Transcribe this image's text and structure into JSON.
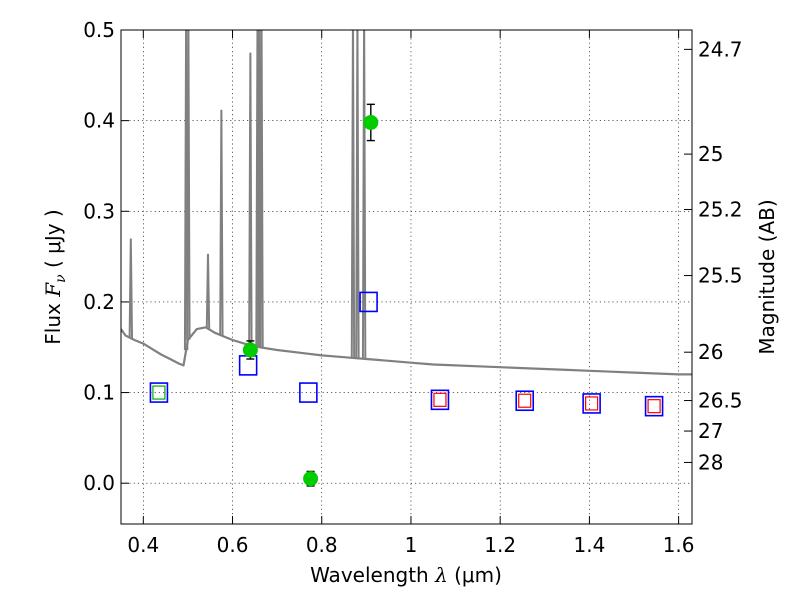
{
  "chart_data": {
    "type": "scatter",
    "title": "",
    "xlabel": {
      "prefix": "Wavelength  ",
      "symbol": "λ",
      "unit": " (μm)"
    },
    "ylabel": {
      "prefix": "Flux  ",
      "symbol": "F",
      "subscript": "ν",
      "unit": "  ( μJy )"
    },
    "y2label": "Magnitude (AB)",
    "xlim": [
      0.35,
      1.63
    ],
    "ylim": [
      -0.045,
      0.5
    ],
    "grid": true,
    "legend": "none",
    "x_ticks": [
      {
        "value": 0.4,
        "label": "0.4"
      },
      {
        "value": 0.6,
        "label": "0.6"
      },
      {
        "value": 0.8,
        "label": "0.8"
      },
      {
        "value": 1.0,
        "label": "1"
      },
      {
        "value": 1.2,
        "label": "1.2"
      },
      {
        "value": 1.4,
        "label": "1.4"
      },
      {
        "value": 1.6,
        "label": "1.6"
      }
    ],
    "y_ticks": [
      {
        "value": 0.0,
        "label": "0.0"
      },
      {
        "value": 0.1,
        "label": "0.1"
      },
      {
        "value": 0.2,
        "label": "0.2"
      },
      {
        "value": 0.3,
        "label": "0.3"
      },
      {
        "value": 0.4,
        "label": "0.4"
      },
      {
        "value": 0.5,
        "label": "0.5"
      }
    ],
    "y2_ticks": [
      {
        "value": 24.7,
        "label": "24.7"
      },
      {
        "value": 25,
        "label": "25"
      },
      {
        "value": 25.2,
        "label": "25.2"
      },
      {
        "value": 25.5,
        "label": "25.5"
      },
      {
        "value": 26,
        "label": "26"
      },
      {
        "value": 26.5,
        "label": "26.5"
      },
      {
        "value": 27,
        "label": "27"
      },
      {
        "value": 28,
        "label": "28"
      }
    ],
    "series": [
      {
        "kind": "line",
        "color": "#808080",
        "continuum": [
          [
            0.35,
            0.17
          ],
          [
            0.36,
            0.163
          ],
          [
            0.38,
            0.158
          ],
          [
            0.4,
            0.154
          ],
          [
            0.42,
            0.148
          ],
          [
            0.44,
            0.142
          ],
          [
            0.46,
            0.137
          ],
          [
            0.48,
            0.132
          ],
          [
            0.49,
            0.13
          ],
          [
            0.5,
            0.158
          ],
          [
            0.52,
            0.17
          ],
          [
            0.54,
            0.172
          ],
          [
            0.56,
            0.166
          ],
          [
            0.58,
            0.162
          ],
          [
            0.6,
            0.158
          ],
          [
            0.62,
            0.155
          ],
          [
            0.64,
            0.152
          ],
          [
            0.66,
            0.15
          ],
          [
            0.7,
            0.147
          ],
          [
            0.75,
            0.144
          ],
          [
            0.8,
            0.141
          ],
          [
            0.85,
            0.139
          ],
          [
            0.9,
            0.137
          ],
          [
            0.95,
            0.135
          ],
          [
            1.0,
            0.133
          ],
          [
            1.05,
            0.131
          ],
          [
            1.1,
            0.13
          ],
          [
            1.15,
            0.129
          ],
          [
            1.2,
            0.128
          ],
          [
            1.25,
            0.127
          ],
          [
            1.3,
            0.126
          ],
          [
            1.35,
            0.125
          ],
          [
            1.4,
            0.124
          ],
          [
            1.45,
            0.123
          ],
          [
            1.5,
            0.122
          ],
          [
            1.55,
            0.121
          ],
          [
            1.6,
            0.12
          ],
          [
            1.63,
            0.12
          ]
        ],
        "emission_lines": [
          {
            "x": 0.372,
            "peak": 0.27
          },
          {
            "x": 0.496,
            "peak": 0.52
          },
          {
            "x": 0.501,
            "peak": 0.52
          },
          {
            "x": 0.545,
            "peak": 0.253
          },
          {
            "x": 0.575,
            "peak": 0.412
          },
          {
            "x": 0.64,
            "peak": 0.475
          },
          {
            "x": 0.656,
            "peak": 0.52
          },
          {
            "x": 0.66,
            "peak": 0.52
          },
          {
            "x": 0.665,
            "peak": 0.52
          },
          {
            "x": 0.87,
            "peak": 0.52
          },
          {
            "x": 0.88,
            "peak": 0.52
          },
          {
            "x": 0.895,
            "peak": 0.52
          }
        ]
      },
      {
        "kind": "open-square",
        "color": "#0000ff",
        "points": [
          [
            0.435,
            0.1
          ],
          [
            0.635,
            0.13
          ],
          [
            0.77,
            0.1
          ],
          [
            0.905,
            0.2
          ],
          [
            1.065,
            0.092
          ],
          [
            1.255,
            0.091
          ],
          [
            1.405,
            0.088
          ],
          [
            1.545,
            0.085
          ]
        ]
      },
      {
        "kind": "open-square-small",
        "color": "#ff0000",
        "points": [
          [
            1.065,
            0.092
          ],
          [
            1.255,
            0.091
          ],
          [
            1.405,
            0.088
          ],
          [
            1.545,
            0.085
          ]
        ]
      },
      {
        "kind": "open-square-small",
        "color": "#00aa00",
        "points": [
          [
            0.435,
            0.1
          ]
        ]
      },
      {
        "kind": "filled-circle",
        "color": "#00cc00",
        "points": [
          {
            "x": 0.64,
            "y": 0.147,
            "err": 0.01
          },
          {
            "x": 0.775,
            "y": 0.005,
            "err": 0.008
          },
          {
            "x": 0.91,
            "y": 0.398,
            "err": 0.02
          }
        ]
      }
    ]
  }
}
